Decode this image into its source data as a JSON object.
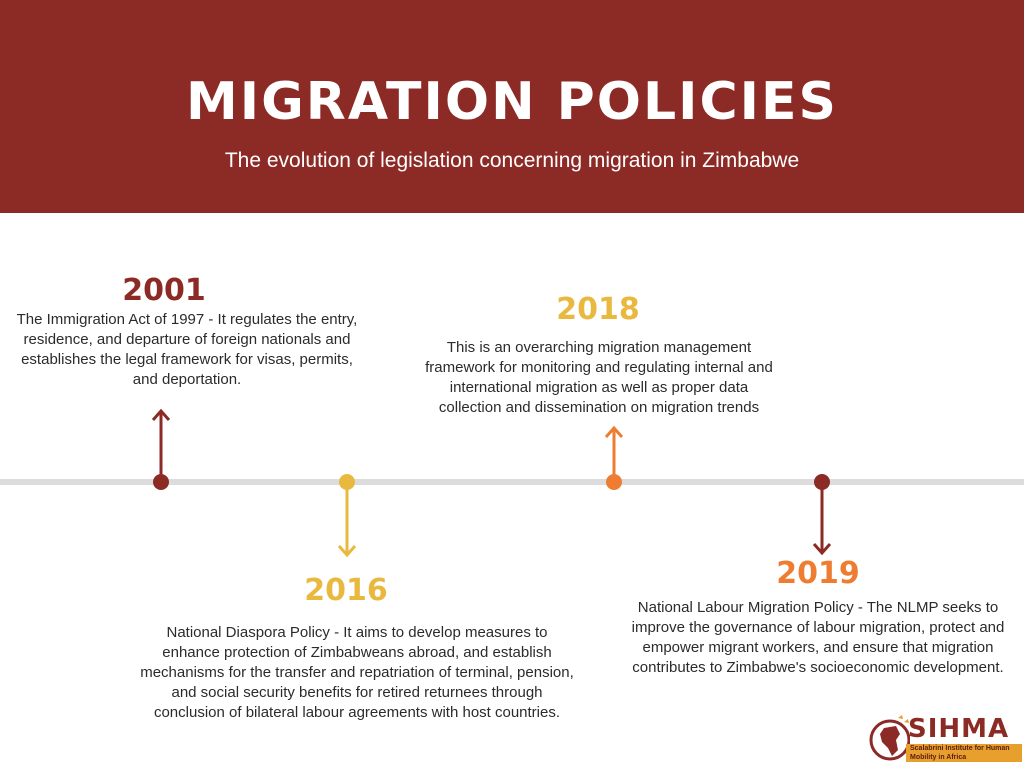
{
  "header": {
    "title": "MIGRATION POLICIES",
    "subtitle": "The evolution of legislation concerning migration in Zimbabwe"
  },
  "events": [
    {
      "year": "2001",
      "color": "#8c2a25",
      "description": "The Immigration Act of 1997 - It regulates the entry, residence, and departure of foreign nationals and establishes the legal framework for visas, permits, and deportation."
    },
    {
      "year": "2016",
      "color": "#e9b93f",
      "description": "National Diaspora Policy - It aims to develop measures to enhance protection of Zimbabweans abroad, and establish mechanisms for the transfer and repatriation of terminal, pension, and social security benefits for retired returnees through conclusion of bilateral labour agreements with host countries."
    },
    {
      "year": "2018",
      "color": "#ee7d31",
      "year_color": "#e9b93f",
      "description": "This is an overarching migration management framework for monitoring and regulating internal and international migration as well as proper data collection and dissemination on migration trends"
    },
    {
      "year": "2019",
      "color": "#8c2a25",
      "year_color": "#ee7d31",
      "description": "National Labour Migration Policy - The NLMP seeks to improve the governance of labour migration, protect and empower migrant workers, and ensure that migration contributes to Zimbabwe's socioeconomic development."
    }
  ],
  "logo": {
    "name": "SIHMA",
    "tagline": "Scalabrini Institute for Human Mobility in Africa"
  },
  "colors": {
    "header_bg": "#8c2a25",
    "timeline": "#dcdcdc"
  }
}
